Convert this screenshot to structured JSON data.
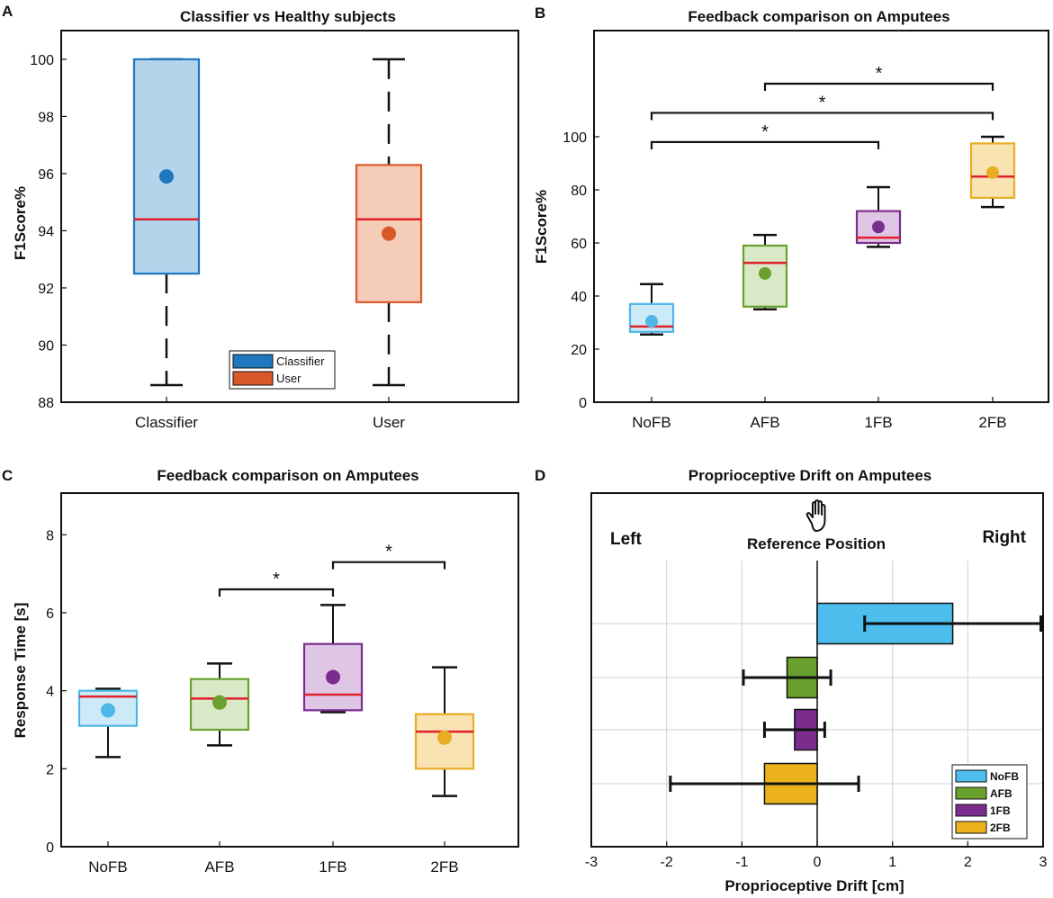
{
  "chart_data": [
    {
      "panel": "A",
      "type": "box",
      "title": "Classifier vs Healthy subjects",
      "xlabel": "",
      "ylabel": "F1Score%",
      "ylim": [
        88,
        100.5
      ],
      "yticks": [
        88,
        90,
        92,
        94,
        96,
        98,
        100
      ],
      "categories": [
        "Classifier",
        "User"
      ],
      "boxes": [
        {
          "name": "Classifier",
          "lower_whisker": 88.6,
          "q1": 92.5,
          "median": 94.4,
          "q3": 100,
          "upper_whisker": 100,
          "mean": 95.9,
          "color": "#1f77c0",
          "fill": "#b4d4ec"
        },
        {
          "name": "User",
          "lower_whisker": 88.6,
          "q1": 91.5,
          "median": 94.4,
          "q3": 96.3,
          "upper_whisker": 100,
          "mean": 93.9,
          "color": "#d9582a",
          "fill": "#f4cdb8"
        }
      ],
      "legend": {
        "position": "bottom-center",
        "entries": [
          {
            "label": "Classifier",
            "color": "#1f77c0"
          },
          {
            "label": "User",
            "color": "#d9582a"
          }
        ]
      }
    },
    {
      "panel": "B",
      "type": "box",
      "title": "Feedback comparison on Amputees",
      "xlabel": "",
      "ylabel": "F1Score%",
      "ylim": [
        0,
        140
      ],
      "yticks": [
        0,
        20,
        40,
        60,
        80,
        100
      ],
      "categories": [
        "NoFB",
        "AFB",
        "1FB",
        "2FB"
      ],
      "boxes": [
        {
          "name": "NoFB",
          "lower_whisker": 25.5,
          "q1": 26.5,
          "median": 28.5,
          "q3": 37,
          "upper_whisker": 44.5,
          "mean": 30.5,
          "color": "#4fb8e8",
          "fill": "#cdeaf8"
        },
        {
          "name": "AFB",
          "lower_whisker": 35,
          "q1": 36,
          "median": 52.5,
          "q3": 59,
          "upper_whisker": 63,
          "mean": 48.5,
          "color": "#6aa12e",
          "fill": "#d9e8c6"
        },
        {
          "name": "1FB",
          "lower_whisker": 58.5,
          "q1": 60,
          "median": 62,
          "q3": 72,
          "upper_whisker": 81,
          "mean": 66,
          "color": "#7b2d8e",
          "fill": "#dec6e4"
        },
        {
          "name": "2FB",
          "lower_whisker": 73.5,
          "q1": 77,
          "median": 85,
          "q3": 97.5,
          "upper_whisker": 100,
          "mean": 86.5,
          "color": "#e8ad23",
          "fill": "#f9e3b3"
        }
      ],
      "significance": [
        {
          "from": "NoFB",
          "to": "1FB",
          "y": 98,
          "label": "*"
        },
        {
          "from": "NoFB",
          "to": "2FB",
          "y": 109,
          "label": "*"
        },
        {
          "from": "AFB",
          "to": "2FB",
          "y": 120,
          "label": "*"
        }
      ]
    },
    {
      "panel": "C",
      "type": "box",
      "title": "Feedback comparison on Amputees",
      "xlabel": "",
      "ylabel": "Response Time [s]",
      "ylim": [
        0,
        9
      ],
      "yticks": [
        0,
        2,
        4,
        6,
        8
      ],
      "categories": [
        "NoFB",
        "AFB",
        "1FB",
        "2FB"
      ],
      "boxes": [
        {
          "name": "NoFB",
          "lower_whisker": 2.3,
          "q1": 3.1,
          "median": 3.85,
          "q3": 4.0,
          "upper_whisker": 4.05,
          "mean": 3.5,
          "color": "#4fb8e8",
          "fill": "#cdeaf8"
        },
        {
          "name": "AFB",
          "lower_whisker": 2.6,
          "q1": 3.0,
          "median": 3.8,
          "q3": 4.3,
          "upper_whisker": 4.7,
          "mean": 3.7,
          "color": "#6aa12e",
          "fill": "#d9e8c6"
        },
        {
          "name": "1FB",
          "lower_whisker": 3.45,
          "q1": 3.5,
          "median": 3.9,
          "q3": 5.2,
          "upper_whisker": 6.2,
          "mean": 4.35,
          "color": "#7b2d8e",
          "fill": "#dec6e4"
        },
        {
          "name": "2FB",
          "lower_whisker": 1.3,
          "q1": 2.0,
          "median": 2.95,
          "q3": 3.4,
          "upper_whisker": 4.6,
          "mean": 2.8,
          "color": "#e8ad23",
          "fill": "#f9e3b3"
        }
      ],
      "significance": [
        {
          "from": "AFB",
          "to": "1FB",
          "y": 6.6,
          "label": "*"
        },
        {
          "from": "1FB",
          "to": "2FB",
          "y": 7.3,
          "label": "*"
        }
      ]
    },
    {
      "panel": "D",
      "type": "bar",
      "orientation": "horizontal",
      "title": "Proprioceptive Drift on Amputees",
      "xlabel": "Proprioceptive Drift [cm]",
      "ylabel": "",
      "xlim": [
        -3,
        3
      ],
      "xticks": [
        -3,
        -2,
        -1,
        0,
        1,
        2,
        3
      ],
      "grid": true,
      "categories": [
        "NoFB",
        "AFB",
        "1FB",
        "2FB"
      ],
      "values": [
        1.8,
        -0.4,
        -0.3,
        -0.7
      ],
      "errors": [
        1.17,
        0.58,
        0.4,
        1.25
      ],
      "colors": [
        "#4dbdee",
        "#6aa12e",
        "#7b2d8e",
        "#ecb21e"
      ],
      "legend": {
        "position": "bottom-right",
        "entries": [
          "NoFB",
          "AFB",
          "1FB",
          "2FB"
        ]
      },
      "annotations": {
        "left": "Left",
        "right": "Right",
        "center": "Reference Position",
        "icon": "hand-icon"
      }
    }
  ],
  "panel_labels": {
    "a": "A",
    "b": "B",
    "c": "C",
    "d": "D"
  }
}
